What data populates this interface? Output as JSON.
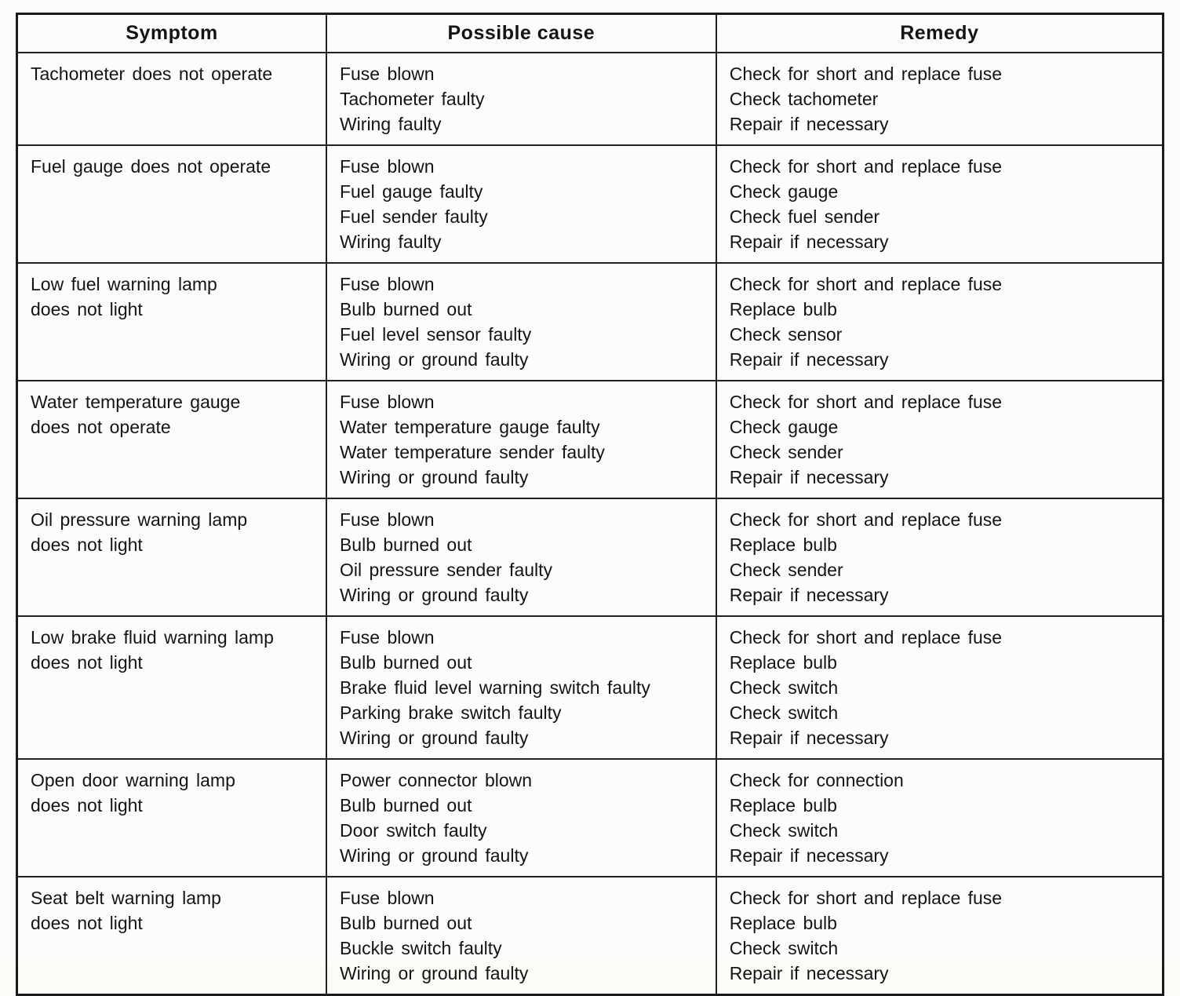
{
  "colors": {
    "border": "#1b1b1b",
    "background": "#fcfcfa",
    "text": "#141414"
  },
  "table": {
    "headers": [
      "Symptom",
      "Possible cause",
      "Remedy"
    ],
    "rows": [
      {
        "symptom": [
          "Tachometer does not operate"
        ],
        "causes": [
          "Fuse blown",
          "Tachometer faulty",
          "Wiring faulty"
        ],
        "remedies": [
          "Check for short and replace fuse",
          "Check tachometer",
          "Repair if necessary"
        ]
      },
      {
        "symptom": [
          "Fuel gauge does not operate"
        ],
        "causes": [
          "Fuse blown",
          "Fuel gauge faulty",
          "Fuel sender faulty",
          "Wiring faulty"
        ],
        "remedies": [
          "Check for short and replace fuse",
          "Check gauge",
          "Check fuel sender",
          "Repair if necessary"
        ]
      },
      {
        "symptom": [
          "Low fuel warning lamp",
          "does not light"
        ],
        "causes": [
          "Fuse blown",
          "Bulb burned out",
          "Fuel level sensor faulty",
          "Wiring or ground faulty"
        ],
        "remedies": [
          "Check for short and replace fuse",
          "Replace bulb",
          "Check sensor",
          "Repair if necessary"
        ]
      },
      {
        "symptom": [
          "Water temperature gauge",
          "does not operate"
        ],
        "causes": [
          "Fuse blown",
          "Water temperature gauge faulty",
          "Water temperature sender faulty",
          "Wiring or ground faulty"
        ],
        "remedies": [
          "Check for short and replace fuse",
          "Check gauge",
          "Check sender",
          "Repair if necessary"
        ]
      },
      {
        "symptom": [
          "Oil pressure warning lamp",
          "does not light"
        ],
        "causes": [
          "Fuse blown",
          "Bulb burned out",
          "Oil pressure sender faulty",
          "Wiring or ground faulty"
        ],
        "remedies": [
          "Check for short and replace fuse",
          "Replace bulb",
          "Check sender",
          "Repair if necessary"
        ]
      },
      {
        "symptom": [
          "Low brake fluid warning lamp",
          "does not light"
        ],
        "causes": [
          "Fuse blown",
          "Bulb burned out",
          "Brake fluid level warning switch faulty",
          "Parking brake switch faulty",
          "Wiring or ground faulty"
        ],
        "remedies": [
          "Check for short and replace fuse",
          "Replace bulb",
          "Check switch",
          "Check switch",
          "Repair if necessary"
        ]
      },
      {
        "symptom": [
          "Open door warning lamp",
          "does not light"
        ],
        "causes": [
          "Power connector blown",
          "Bulb burned out",
          "Door switch faulty",
          "Wiring or ground faulty"
        ],
        "remedies": [
          "Check for connection",
          "Replace bulb",
          "Check switch",
          "Repair if necessary"
        ]
      },
      {
        "symptom": [
          "Seat belt warning lamp",
          "does not light"
        ],
        "causes": [
          "Fuse blown",
          "Bulb burned out",
          "Buckle switch faulty",
          "Wiring or ground faulty"
        ],
        "remedies": [
          "Check for short and replace fuse",
          "Replace bulb",
          "Check switch",
          "Repair if necessary"
        ]
      }
    ]
  }
}
